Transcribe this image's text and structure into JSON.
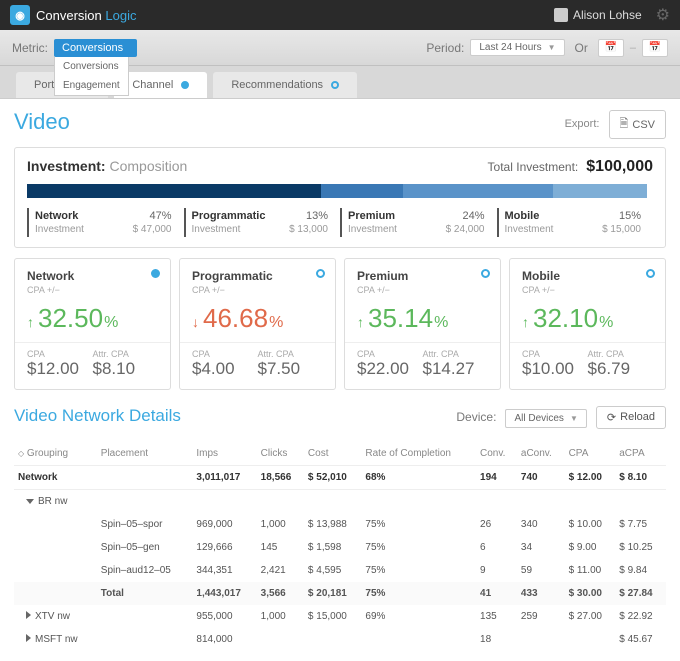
{
  "brand": {
    "a": "Conversion",
    "b": "Logic"
  },
  "user": {
    "name": "Alison Lohse"
  },
  "filter": {
    "metric_label": "Metric:",
    "metric_selected": "Conversions",
    "metric_options": [
      "Conversions",
      "Engagement"
    ],
    "period_label": "Period:",
    "period_selected": "Last 24 Hours",
    "or": "Or"
  },
  "tabs": [
    {
      "label": "Portfolio",
      "active": false,
      "fill": false
    },
    {
      "label": "Channel",
      "active": true,
      "fill": true
    },
    {
      "label": "Recommendations",
      "active": false,
      "fill": false
    }
  ],
  "page": {
    "title": "Video",
    "export_label": "Export:",
    "csv": "CSV"
  },
  "investment": {
    "title": "Investment:",
    "subtitle": "Composition",
    "total_label": "Total Investment:",
    "total_value": "$100,000",
    "segments": [
      {
        "name": "Network",
        "pct": "47%",
        "amount": "$ 47,000",
        "width": 47,
        "color": "#0a3a66"
      },
      {
        "name": "Programmatic",
        "pct": "13%",
        "amount": "$ 13,000",
        "width": 13,
        "color": "#3a78b5"
      },
      {
        "name": "Premium",
        "pct": "24%",
        "amount": "$ 24,000",
        "width": 24,
        "color": "#5a93c9"
      },
      {
        "name": "Mobile",
        "pct": "15%",
        "amount": "$ 15,000",
        "width": 15,
        "color": "#7eaed6"
      }
    ],
    "inv_label": "Investment"
  },
  "kpis": [
    {
      "name": "Network",
      "fill": true,
      "dir": "up",
      "color": "green",
      "value": "32.50",
      "cpa": "$12.00",
      "attr": "$8.10"
    },
    {
      "name": "Programmatic",
      "fill": false,
      "dir": "down",
      "color": "red",
      "value": "46.68",
      "cpa": "$4.00",
      "attr": "$7.50"
    },
    {
      "name": "Premium",
      "fill": false,
      "dir": "up",
      "color": "green",
      "value": "35.14",
      "cpa": "$22.00",
      "attr": "$14.27"
    },
    {
      "name": "Mobile",
      "fill": false,
      "dir": "up",
      "color": "green",
      "value": "32.10",
      "cpa": "$10.00",
      "attr": "$6.79"
    }
  ],
  "kpi_labels": {
    "cpa_pm": "CPA +/−",
    "cpa": "CPA",
    "attr_cpa": "Attr. CPA"
  },
  "details": {
    "title": "Video Network Details",
    "device_label": "Device:",
    "device_value": "All Devices",
    "reload": "Reload",
    "columns": [
      "Grouping",
      "Placement",
      "Imps",
      "Clicks",
      "Cost",
      "Rate of Completion",
      "Conv.",
      "aConv.",
      "CPA",
      "aCPA"
    ],
    "rows": [
      {
        "type": "nw",
        "cells": [
          "Network",
          "",
          "3,011,017",
          "18,566",
          "$ 52,010",
          "68%",
          "194",
          "740",
          "$ 12.00",
          "$ 8.10"
        ]
      },
      {
        "type": "grp",
        "expanded": true,
        "cells": [
          "BR nw",
          "",
          "",
          "",
          "",
          "",
          "",
          "",
          "",
          ""
        ]
      },
      {
        "type": "sub",
        "cells": [
          "",
          "Spin–05–spor",
          "969,000",
          "1,000",
          "$ 13,988",
          "75%",
          "26",
          "340",
          "$ 10.00",
          "$ 7.75"
        ]
      },
      {
        "type": "sub",
        "cells": [
          "",
          "Spin–05–gen",
          "129,666",
          "145",
          "$ 1,598",
          "75%",
          "6",
          "34",
          "$ 9.00",
          "$ 10.25"
        ]
      },
      {
        "type": "sub",
        "cells": [
          "",
          "Spin–aud12–05",
          "344,351",
          "2,421",
          "$ 4,595",
          "75%",
          "9",
          "59",
          "$ 11.00",
          "$ 9.84"
        ]
      },
      {
        "type": "total",
        "cells": [
          "",
          "Total",
          "1,443,017",
          "3,566",
          "$ 20,181",
          "75%",
          "41",
          "433",
          "$ 30.00",
          "$ 27.84"
        ]
      },
      {
        "type": "grp",
        "expanded": false,
        "cells": [
          "XTV nw",
          "",
          "955,000",
          "1,000",
          "$ 15,000",
          "69%",
          "135",
          "259",
          "$ 27.00",
          "$ 22.92"
        ]
      },
      {
        "type": "grp",
        "expanded": false,
        "cells": [
          "MSFT nw",
          "",
          "814,000",
          "",
          "",
          "",
          "18",
          "",
          "",
          "$ 45.67"
        ]
      }
    ]
  }
}
